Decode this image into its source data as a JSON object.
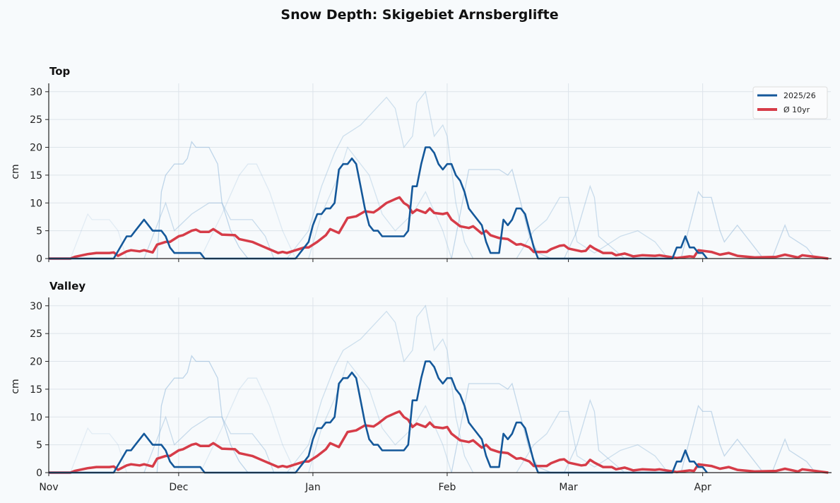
{
  "chart_data": [
    {
      "type": "line",
      "title": "Snow Depth: Skigebiet Arnsberglifte",
      "panel_title": "Top",
      "ylabel": "cm",
      "ylim": [
        0,
        31.5
      ],
      "yticks": [
        "0",
        "5",
        "10",
        "15",
        "20",
        "25",
        "30"
      ],
      "xlim": [
        "11-01",
        "04-30"
      ],
      "xticks": [
        "Nov",
        "Dec",
        "Jan",
        "Feb",
        "Mar",
        "Apr"
      ],
      "grid": true,
      "legend": {
        "placement": "top-right",
        "entries": [
          "2025/26",
          "Ø 10yr"
        ]
      },
      "colors": {
        "current": "#14589a",
        "average": "#d63c48",
        "past": "#8fb6d8"
      }
    },
    {
      "type": "line",
      "panel_title": "Valley",
      "ylabel": "cm",
      "ylim": [
        0,
        31.5
      ],
      "yticks": [
        "0",
        "5",
        "10",
        "15",
        "20",
        "25",
        "30"
      ],
      "xticks": [
        "Nov",
        "Dec",
        "Jan",
        "Feb",
        "Mar",
        "Apr"
      ],
      "grid": true
    }
  ],
  "series": {
    "current": {
      "name": "2025/26",
      "points": [
        [
          "11-01",
          0
        ],
        [
          "11-16",
          0
        ],
        [
          "11-19",
          4
        ],
        [
          "11-20",
          4
        ],
        [
          "11-21",
          5
        ],
        [
          "11-23",
          7
        ],
        [
          "11-25",
          5
        ],
        [
          "11-27",
          5
        ],
        [
          "11-28",
          4
        ],
        [
          "11-29",
          2
        ],
        [
          "11-30",
          1
        ],
        [
          "12-06",
          1
        ],
        [
          "12-07",
          0
        ],
        [
          "12-28",
          0
        ],
        [
          "12-30",
          2
        ],
        [
          "12-31",
          3
        ],
        [
          "01-01",
          6
        ],
        [
          "01-02",
          8
        ],
        [
          "01-03",
          8
        ],
        [
          "01-04",
          9
        ],
        [
          "01-05",
          9
        ],
        [
          "01-06",
          10
        ],
        [
          "01-07",
          16
        ],
        [
          "01-08",
          17
        ],
        [
          "01-09",
          17
        ],
        [
          "01-10",
          18
        ],
        [
          "01-11",
          17
        ],
        [
          "01-12",
          13
        ],
        [
          "01-13",
          9
        ],
        [
          "01-14",
          6
        ],
        [
          "01-15",
          5
        ],
        [
          "01-16",
          5
        ],
        [
          "01-17",
          4
        ],
        [
          "01-22",
          4
        ],
        [
          "01-23",
          5
        ],
        [
          "01-24",
          13
        ],
        [
          "01-25",
          13
        ],
        [
          "01-26",
          17
        ],
        [
          "01-27",
          20
        ],
        [
          "01-28",
          20
        ],
        [
          "01-29",
          19
        ],
        [
          "01-30",
          17
        ],
        [
          "01-31",
          16
        ],
        [
          "02-01",
          17
        ],
        [
          "02-02",
          17
        ],
        [
          "02-03",
          15
        ],
        [
          "02-04",
          14
        ],
        [
          "02-05",
          12
        ],
        [
          "02-06",
          9
        ],
        [
          "02-07",
          8
        ],
        [
          "02-08",
          7
        ],
        [
          "02-09",
          6
        ],
        [
          "02-10",
          3
        ],
        [
          "02-11",
          1
        ],
        [
          "02-13",
          1
        ],
        [
          "02-14",
          7
        ],
        [
          "02-15",
          6
        ],
        [
          "02-16",
          7
        ],
        [
          "02-17",
          9
        ],
        [
          "02-18",
          9
        ],
        [
          "02-19",
          8
        ],
        [
          "02-20",
          5
        ],
        [
          "02-21",
          2
        ],
        [
          "02-22",
          0
        ],
        [
          "03-25",
          0
        ],
        [
          "03-26",
          2
        ],
        [
          "03-27",
          2
        ],
        [
          "03-28",
          4
        ],
        [
          "03-29",
          2
        ],
        [
          "03-30",
          2
        ],
        [
          "03-31",
          1
        ],
        [
          "04-01",
          1
        ],
        [
          "04-02",
          0
        ]
      ]
    },
    "average": {
      "name": "Ø 10yr",
      "points": [
        [
          "11-01",
          0
        ],
        [
          "11-06",
          0
        ],
        [
          "11-07",
          0.3
        ],
        [
          "11-10",
          0.8
        ],
        [
          "11-12",
          1.0
        ],
        [
          "11-15",
          1.0
        ],
        [
          "11-16",
          1.1
        ],
        [
          "11-17",
          0.5
        ],
        [
          "11-19",
          1.3
        ],
        [
          "11-20",
          1.5
        ],
        [
          "11-22",
          1.3
        ],
        [
          "11-23",
          1.5
        ],
        [
          "11-25",
          1.1
        ],
        [
          "11-26",
          2.5
        ],
        [
          "11-28",
          3.0
        ],
        [
          "11-29",
          3.0
        ],
        [
          "12-01",
          4.0
        ],
        [
          "12-02",
          4.2
        ],
        [
          "12-04",
          5.0
        ],
        [
          "12-05",
          5.2
        ],
        [
          "12-06",
          4.8
        ],
        [
          "12-08",
          4.8
        ],
        [
          "12-09",
          5.3
        ],
        [
          "12-11",
          4.3
        ],
        [
          "12-14",
          4.2
        ],
        [
          "12-15",
          3.5
        ],
        [
          "12-18",
          3.0
        ],
        [
          "12-21",
          2.0
        ],
        [
          "12-24",
          1.0
        ],
        [
          "12-25",
          1.2
        ],
        [
          "12-26",
          1.0
        ],
        [
          "12-28",
          1.5
        ],
        [
          "12-30",
          2.0
        ],
        [
          "12-31",
          2.0
        ],
        [
          "01-02",
          3.0
        ],
        [
          "01-04",
          4.2
        ],
        [
          "01-05",
          5.3
        ],
        [
          "01-07",
          4.6
        ],
        [
          "01-09",
          7.3
        ],
        [
          "01-11",
          7.6
        ],
        [
          "01-13",
          8.5
        ],
        [
          "01-15",
          8.3
        ],
        [
          "01-16",
          8.8
        ],
        [
          "01-18",
          10
        ],
        [
          "01-20",
          10.7
        ],
        [
          "01-21",
          11
        ],
        [
          "01-22",
          10
        ],
        [
          "01-23",
          9.5
        ],
        [
          "01-24",
          8.2
        ],
        [
          "01-25",
          8.8
        ],
        [
          "01-27",
          8.2
        ],
        [
          "01-28",
          9.0
        ],
        [
          "01-29",
          8.2
        ],
        [
          "01-31",
          8.0
        ],
        [
          "02-01",
          8.2
        ],
        [
          "02-02",
          7.0
        ],
        [
          "02-04",
          5.8
        ],
        [
          "02-06",
          5.5
        ],
        [
          "02-07",
          5.8
        ],
        [
          "02-09",
          4.5
        ],
        [
          "02-10",
          5.0
        ],
        [
          "02-11",
          4.2
        ],
        [
          "02-13",
          3.7
        ],
        [
          "02-15",
          3.5
        ],
        [
          "02-17",
          2.5
        ],
        [
          "02-18",
          2.6
        ],
        [
          "02-20",
          2.0
        ],
        [
          "02-21",
          1.2
        ],
        [
          "02-24",
          1.2
        ],
        [
          "02-25",
          1.7
        ],
        [
          "02-27",
          2.3
        ],
        [
          "02-28",
          2.4
        ],
        [
          "03-01",
          1.8
        ],
        [
          "03-04",
          1.3
        ],
        [
          "03-05",
          1.4
        ],
        [
          "03-06",
          2.3
        ],
        [
          "03-07",
          1.8
        ],
        [
          "03-09",
          1.0
        ],
        [
          "03-11",
          1.0
        ],
        [
          "03-12",
          0.6
        ],
        [
          "03-14",
          0.9
        ],
        [
          "03-16",
          0.4
        ],
        [
          "03-18",
          0.6
        ],
        [
          "03-21",
          0.5
        ],
        [
          "03-22",
          0.6
        ],
        [
          "03-26",
          0.1
        ],
        [
          "03-29",
          0.4
        ],
        [
          "03-30",
          0.3
        ],
        [
          "03-31",
          1.5
        ],
        [
          "04-03",
          1.2
        ],
        [
          "04-05",
          0.7
        ],
        [
          "04-07",
          1.0
        ],
        [
          "04-09",
          0.5
        ],
        [
          "04-13",
          0.2
        ],
        [
          "04-18",
          0.3
        ],
        [
          "04-20",
          0.7
        ],
        [
          "04-23",
          0.2
        ],
        [
          "04-24",
          0.6
        ],
        [
          "04-27",
          0.3
        ],
        [
          "04-30",
          0
        ]
      ]
    },
    "past": [
      [
        [
          "11-26",
          0
        ],
        [
          "11-27",
          12
        ],
        [
          "11-28",
          15
        ],
        [
          "11-30",
          17
        ],
        [
          "12-02",
          17
        ],
        [
          "12-03",
          18
        ],
        [
          "12-04",
          21
        ],
        [
          "12-05",
          20
        ],
        [
          "12-08",
          20
        ],
        [
          "12-10",
          17
        ],
        [
          "12-11",
          10
        ],
        [
          "12-13",
          5
        ],
        [
          "12-15",
          2
        ],
        [
          "12-17",
          0
        ]
      ],
      [
        [
          "12-26",
          0
        ],
        [
          "12-31",
          5
        ],
        [
          "01-03",
          13
        ],
        [
          "01-06",
          19
        ],
        [
          "01-08",
          22
        ],
        [
          "01-10",
          23
        ],
        [
          "01-12",
          24
        ],
        [
          "01-18",
          29
        ],
        [
          "01-20",
          27
        ],
        [
          "01-22",
          20
        ],
        [
          "01-24",
          22
        ],
        [
          "01-25",
          28
        ],
        [
          "01-27",
          30
        ],
        [
          "01-29",
          22
        ],
        [
          "01-31",
          24
        ],
        [
          "02-01",
          22
        ],
        [
          "02-03",
          10
        ],
        [
          "02-05",
          3
        ],
        [
          "02-07",
          0
        ]
      ],
      [
        [
          "02-02",
          0
        ],
        [
          "02-06",
          16
        ],
        [
          "02-13",
          16
        ],
        [
          "02-15",
          15
        ],
        [
          "02-16",
          16
        ],
        [
          "02-18",
          10
        ],
        [
          "02-20",
          4
        ],
        [
          "02-22",
          1
        ],
        [
          "02-25",
          0
        ]
      ],
      [
        [
          "02-28",
          0
        ],
        [
          "03-03",
          5
        ],
        [
          "03-06",
          13
        ],
        [
          "03-07",
          11
        ],
        [
          "03-08",
          4
        ],
        [
          "03-11",
          2
        ],
        [
          "03-14",
          0
        ]
      ],
      [
        [
          "03-27",
          0
        ],
        [
          "03-30",
          9
        ],
        [
          "03-31",
          12
        ],
        [
          "04-01",
          11
        ],
        [
          "04-03",
          11
        ],
        [
          "04-05",
          5
        ],
        [
          "04-06",
          3
        ],
        [
          "04-08",
          5
        ],
        [
          "04-09",
          6
        ],
        [
          "04-11",
          4
        ],
        [
          "04-13",
          2
        ],
        [
          "04-15",
          0
        ]
      ],
      [
        [
          "04-17",
          0
        ],
        [
          "04-20",
          6
        ],
        [
          "04-21",
          4
        ],
        [
          "04-23",
          3
        ],
        [
          "04-25",
          2
        ],
        [
          "04-27",
          0
        ]
      ],
      [
        [
          "12-06",
          0
        ],
        [
          "12-11",
          8
        ],
        [
          "12-15",
          15
        ],
        [
          "12-17",
          17
        ],
        [
          "12-19",
          17
        ],
        [
          "12-22",
          12
        ],
        [
          "12-25",
          5
        ],
        [
          "12-28",
          0
        ]
      ],
      [
        [
          "11-06",
          0
        ],
        [
          "11-10",
          8
        ],
        [
          "11-11",
          7
        ],
        [
          "11-15",
          7
        ],
        [
          "11-17",
          5
        ],
        [
          "11-19",
          0
        ]
      ],
      [
        [
          "11-23",
          0
        ],
        [
          "11-28",
          10
        ],
        [
          "11-30",
          5
        ],
        [
          "12-04",
          8
        ],
        [
          "12-08",
          10
        ],
        [
          "12-11",
          10
        ],
        [
          "12-13",
          7
        ],
        [
          "12-18",
          7
        ],
        [
          "12-21",
          4
        ],
        [
          "12-23",
          0
        ]
      ],
      [
        [
          "12-31",
          0
        ],
        [
          "01-03",
          8
        ],
        [
          "01-07",
          15
        ],
        [
          "01-09",
          20
        ],
        [
          "01-11",
          18
        ],
        [
          "01-14",
          15
        ],
        [
          "01-17",
          8
        ],
        [
          "01-20",
          5
        ],
        [
          "01-24",
          8
        ],
        [
          "01-27",
          12
        ],
        [
          "01-31",
          5
        ],
        [
          "02-02",
          0
        ]
      ],
      [
        [
          "02-17",
          0
        ],
        [
          "02-21",
          5
        ],
        [
          "02-24",
          7
        ],
        [
          "02-27",
          11
        ],
        [
          "03-01",
          11
        ],
        [
          "03-03",
          3
        ],
        [
          "03-07",
          1
        ],
        [
          "03-13",
          4
        ],
        [
          "03-17",
          5
        ],
        [
          "03-21",
          3
        ],
        [
          "03-24",
          0
        ]
      ]
    ]
  }
}
